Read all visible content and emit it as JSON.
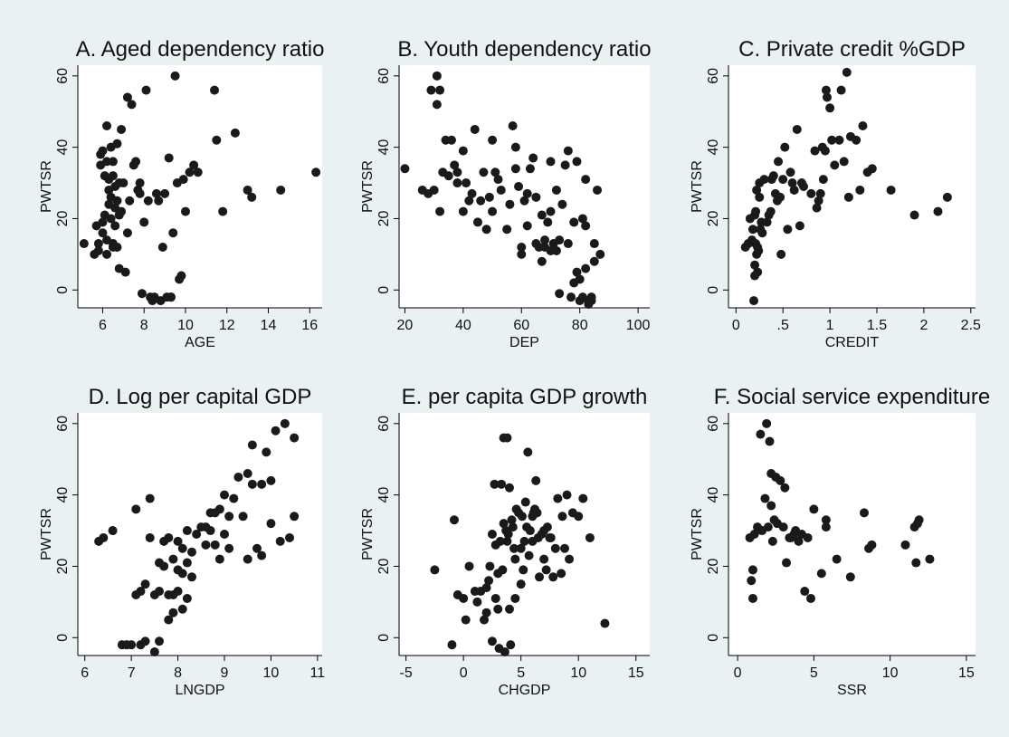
{
  "chart_data": [
    {
      "type": "scatter",
      "title": "A. Aged dependency ratio",
      "xlabel": "AGE",
      "ylabel": "PWTSR",
      "xlim": [
        4.8,
        16.6
      ],
      "ylim": [
        -5,
        63
      ],
      "xticks": [
        6,
        8,
        10,
        12,
        14,
        16
      ],
      "yticks": [
        0,
        20,
        40,
        60
      ],
      "grid": false,
      "x": [
        5.1,
        5.6,
        5.7,
        5.8,
        5.8,
        5.9,
        5.9,
        6.0,
        6.0,
        6.0,
        6.1,
        6.1,
        6.2,
        6.2,
        6.2,
        6.2,
        6.3,
        6.3,
        6.3,
        6.4,
        6.4,
        6.4,
        6.5,
        6.5,
        6.5,
        6.5,
        6.6,
        6.6,
        6.6,
        6.7,
        6.7,
        6.7,
        6.8,
        6.8,
        6.8,
        6.9,
        6.9,
        7.0,
        7.1,
        7.2,
        7.2,
        7.3,
        7.4,
        7.5,
        7.6,
        7.7,
        7.8,
        7.8,
        7.9,
        8.0,
        8.1,
        8.2,
        8.3,
        8.4,
        8.5,
        8.6,
        8.7,
        8.8,
        8.9,
        9.0,
        9.1,
        9.2,
        9.3,
        9.3,
        9.4,
        9.5,
        9.6,
        9.7,
        9.8,
        9.9,
        10.0,
        10.2,
        10.4,
        10.6,
        11.4,
        11.5,
        11.8,
        12.4,
        13.0,
        13.2,
        14.6,
        16.3
      ],
      "y": [
        13,
        10,
        18,
        13,
        11,
        38,
        35,
        19,
        16,
        39,
        21,
        32,
        36,
        46,
        14,
        10,
        31,
        28,
        24,
        40,
        26,
        20,
        12,
        36,
        32,
        13,
        29,
        23,
        18,
        41,
        25,
        12,
        6,
        30,
        21,
        45,
        22,
        30,
        5,
        16,
        54,
        25,
        52,
        35,
        36,
        28,
        27,
        30,
        -1,
        19,
        56,
        25,
        -2,
        -3,
        -2,
        27,
        25,
        -3,
        12,
        27,
        -2,
        37,
        -2,
        -2,
        16,
        60,
        30,
        3,
        4,
        31,
        22,
        33,
        35,
        33,
        56,
        42,
        22,
        44,
        28,
        26,
        28,
        33
      ]
    },
    {
      "type": "scatter",
      "title": "B. Youth dependency ratio",
      "xlabel": "DEP",
      "ylabel": "PWTSR",
      "xlim": [
        18,
        104
      ],
      "ylim": [
        -5,
        63
      ],
      "xticks": [
        20,
        40,
        60,
        80,
        100
      ],
      "yticks": [
        0,
        20,
        40,
        60
      ],
      "grid": false,
      "x": [
        20,
        26,
        28,
        29,
        30,
        31,
        31,
        32,
        32,
        33,
        34,
        35,
        36,
        37,
        38,
        38,
        40,
        40,
        41,
        42,
        43,
        44,
        45,
        46,
        47,
        48,
        49,
        50,
        50,
        51,
        52,
        53,
        55,
        56,
        57,
        58,
        58,
        59,
        60,
        60,
        61,
        62,
        62,
        63,
        64,
        65,
        65,
        66,
        67,
        67,
        68,
        68,
        69,
        70,
        70,
        70,
        71,
        72,
        72,
        73,
        73,
        74,
        75,
        76,
        76,
        77,
        78,
        78,
        79,
        79,
        80,
        80,
        81,
        81,
        82,
        82,
        82,
        83,
        83,
        84,
        84,
        85,
        85,
        86,
        87
      ],
      "y": [
        34,
        28,
        27,
        56,
        28,
        52,
        60,
        22,
        56,
        33,
        42,
        32,
        42,
        35,
        30,
        33,
        22,
        39,
        30,
        25,
        27,
        45,
        19,
        25,
        33,
        17,
        26,
        22,
        42,
        33,
        31,
        28,
        17,
        24,
        46,
        34,
        40,
        29,
        12,
        10,
        25,
        27,
        18,
        34,
        37,
        13,
        26,
        12,
        8,
        21,
        12,
        14,
        19,
        11,
        22,
        36,
        13,
        28,
        11,
        -1,
        14,
        24,
        35,
        13,
        39,
        -2,
        19,
        2,
        36,
        5,
        -3,
        3,
        -2,
        20,
        6,
        31,
        18,
        -3,
        -4,
        -3,
        -2,
        13,
        8,
        28,
        10
      ]
    },
    {
      "type": "scatter",
      "title": "C. Private credit %GDP",
      "xlabel": "CREDIT",
      "ylabel": "PWTSR",
      "xlim": [
        -0.08,
        2.55
      ],
      "ylim": [
        -5,
        63
      ],
      "xticks": [
        0,
        0.5,
        1,
        1.5,
        2,
        2.5
      ],
      "xtick_labels": [
        "0",
        ".5",
        "1",
        "1.5",
        "2",
        "2.5"
      ],
      "yticks": [
        0,
        20,
        40,
        60
      ],
      "grid": false,
      "x": [
        0.1,
        0.13,
        0.15,
        0.17,
        0.18,
        0.19,
        0.2,
        0.2,
        0.2,
        0.21,
        0.21,
        0.22,
        0.22,
        0.23,
        0.23,
        0.24,
        0.25,
        0.25,
        0.26,
        0.27,
        0.28,
        0.3,
        0.33,
        0.35,
        0.37,
        0.38,
        0.4,
        0.42,
        0.44,
        0.45,
        0.47,
        0.48,
        0.5,
        0.52,
        0.55,
        0.58,
        0.6,
        0.62,
        0.65,
        0.68,
        0.7,
        0.72,
        0.8,
        0.84,
        0.86,
        0.88,
        0.9,
        0.92,
        0.93,
        0.95,
        0.96,
        0.97,
        1.0,
        1.02,
        1.05,
        1.1,
        1.12,
        1.15,
        1.18,
        1.2,
        1.22,
        1.28,
        1.32,
        1.35,
        1.4,
        1.45,
        1.65,
        1.9,
        2.15,
        2.25
      ],
      "y": [
        12,
        13,
        20,
        14,
        17,
        -3,
        7,
        4,
        21,
        22,
        13,
        28,
        10,
        5,
        12,
        11,
        26,
        30,
        17,
        19,
        16,
        31,
        19,
        21,
        22,
        31,
        32,
        27,
        25,
        36,
        26,
        10,
        31,
        40,
        17,
        33,
        30,
        28,
        45,
        18,
        30,
        29,
        27,
        39,
        23,
        25,
        27,
        40,
        31,
        39,
        56,
        54,
        51,
        42,
        35,
        42,
        56,
        36,
        61,
        26,
        43,
        42,
        28,
        46,
        33,
        34,
        28,
        21,
        22,
        26
      ]
    },
    {
      "type": "scatter",
      "title": "D. Log per capital GDP",
      "xlabel": "LNGDP",
      "ylabel": "PWTSR",
      "xlim": [
        5.85,
        11.1
      ],
      "ylim": [
        -5,
        63
      ],
      "xticks": [
        6,
        7,
        8,
        9,
        10,
        11
      ],
      "yticks": [
        0,
        20,
        40,
        60
      ],
      "grid": false,
      "x": [
        6.3,
        6.4,
        6.6,
        6.8,
        6.9,
        7.0,
        7.1,
        7.1,
        7.2,
        7.2,
        7.3,
        7.3,
        7.4,
        7.4,
        7.5,
        7.5,
        7.6,
        7.6,
        7.6,
        7.7,
        7.7,
        7.8,
        7.8,
        7.8,
        7.9,
        7.9,
        7.9,
        8.0,
        8.0,
        8.0,
        8.1,
        8.1,
        8.1,
        8.2,
        8.2,
        8.2,
        8.3,
        8.3,
        8.4,
        8.5,
        8.6,
        8.6,
        8.7,
        8.7,
        8.8,
        8.8,
        8.9,
        8.9,
        9.0,
        9.0,
        9.1,
        9.1,
        9.2,
        9.3,
        9.4,
        9.5,
        9.5,
        9.6,
        9.6,
        9.7,
        9.8,
        9.8,
        9.9,
        10.0,
        10.0,
        10.1,
        10.2,
        10.3,
        10.4,
        10.5,
        10.5
      ],
      "y": [
        27,
        28,
        30,
        -2,
        -2,
        -2,
        12,
        36,
        -2,
        13,
        15,
        -1,
        39,
        28,
        -4,
        12,
        13,
        21,
        -1,
        27,
        20,
        12,
        5,
        28,
        7,
        22,
        12,
        13,
        19,
        27,
        8,
        18,
        25,
        21,
        30,
        11,
        17,
        24,
        29,
        31,
        31,
        26,
        30,
        35,
        26,
        35,
        36,
        22,
        40,
        29,
        34,
        25,
        39,
        45,
        34,
        46,
        22,
        43,
        54,
        25,
        23,
        43,
        52,
        32,
        44,
        58,
        27,
        60,
        28,
        34,
        56
      ]
    },
    {
      "type": "scatter",
      "title": "E. per capita GDP growth",
      "xlabel": "CHGDP",
      "ylabel": "PWTSR",
      "xlim": [
        -5.6,
        16.2
      ],
      "ylim": [
        -5,
        63
      ],
      "xticks": [
        -5,
        0,
        5,
        10,
        15
      ],
      "yticks": [
        0,
        20,
        40,
        60
      ],
      "grid": false,
      "x": [
        -2.5,
        -1.0,
        -0.8,
        -0.5,
        0,
        0.2,
        0.5,
        1.0,
        1.2,
        1.5,
        1.8,
        2.0,
        2.0,
        2.2,
        2.3,
        2.5,
        2.5,
        2.7,
        2.8,
        2.8,
        3.0,
        3.0,
        3.1,
        3.2,
        3.3,
        3.4,
        3.5,
        3.5,
        3.6,
        3.7,
        3.8,
        3.8,
        3.9,
        4.0,
        4.0,
        4.1,
        4.2,
        4.3,
        4.4,
        4.5,
        4.5,
        4.6,
        4.8,
        5.0,
        5.0,
        5.1,
        5.2,
        5.3,
        5.4,
        5.5,
        5.6,
        5.7,
        5.8,
        6.0,
        6.0,
        6.1,
        6.2,
        6.3,
        6.4,
        6.5,
        6.6,
        6.8,
        7.0,
        7.0,
        7.2,
        7.3,
        7.5,
        7.6,
        7.8,
        8.0,
        8.2,
        8.5,
        8.6,
        8.8,
        9.0,
        9.2,
        9.5,
        10.0,
        10.4,
        11.0,
        12.3
      ],
      "y": [
        19,
        -2,
        33,
        12,
        11,
        5,
        20,
        13,
        10,
        13,
        5,
        7,
        14,
        16,
        20,
        -1,
        29,
        43,
        11,
        26,
        8,
        18,
        -3,
        27,
        43,
        19,
        56,
        32,
        -4,
        30,
        56,
        27,
        29,
        8,
        42,
        -2,
        33,
        31,
        25,
        22,
        11,
        36,
        35,
        15,
        25,
        34,
        19,
        27,
        38,
        31,
        52,
        23,
        30,
        34,
        27,
        35,
        36,
        44,
        35,
        28,
        17,
        29,
        30,
        22,
        19,
        31,
        28,
        28,
        17,
        25,
        39,
        18,
        34,
        25,
        40,
        22,
        35,
        34,
        39,
        28,
        4
      ]
    },
    {
      "type": "scatter",
      "title": "F. Social service expenditure",
      "xlabel": "SSR",
      "ylabel": "PWTSR",
      "xlim": [
        -0.6,
        15.6
      ],
      "ylim": [
        -5,
        63
      ],
      "xticks": [
        0,
        5,
        10,
        15
      ],
      "yticks": [
        0,
        20,
        40,
        60
      ],
      "grid": false,
      "x": [
        0.8,
        0.9,
        1.0,
        1.0,
        1.1,
        1.3,
        1.5,
        1.6,
        1.8,
        1.9,
        2.0,
        2.1,
        2.2,
        2.2,
        2.3,
        2.4,
        2.5,
        2.6,
        2.8,
        3.0,
        3.1,
        3.2,
        3.4,
        3.5,
        3.7,
        3.8,
        4.0,
        4.2,
        4.4,
        4.6,
        4.8,
        5.0,
        5.5,
        5.8,
        5.8,
        6.5,
        7.4,
        8.3,
        8.6,
        8.8,
        11.0,
        11.6,
        11.7,
        11.8,
        11.9,
        12.6
      ],
      "y": [
        28,
        16,
        19,
        11,
        29,
        31,
        57,
        30,
        39,
        60,
        31,
        55,
        37,
        46,
        27,
        33,
        45,
        32,
        44,
        31,
        42,
        21,
        28,
        28,
        29,
        30,
        27,
        29,
        13,
        28,
        11,
        36,
        18,
        31,
        33,
        22,
        17,
        35,
        25,
        26,
        26,
        31,
        21,
        32,
        33,
        22
      ]
    }
  ]
}
